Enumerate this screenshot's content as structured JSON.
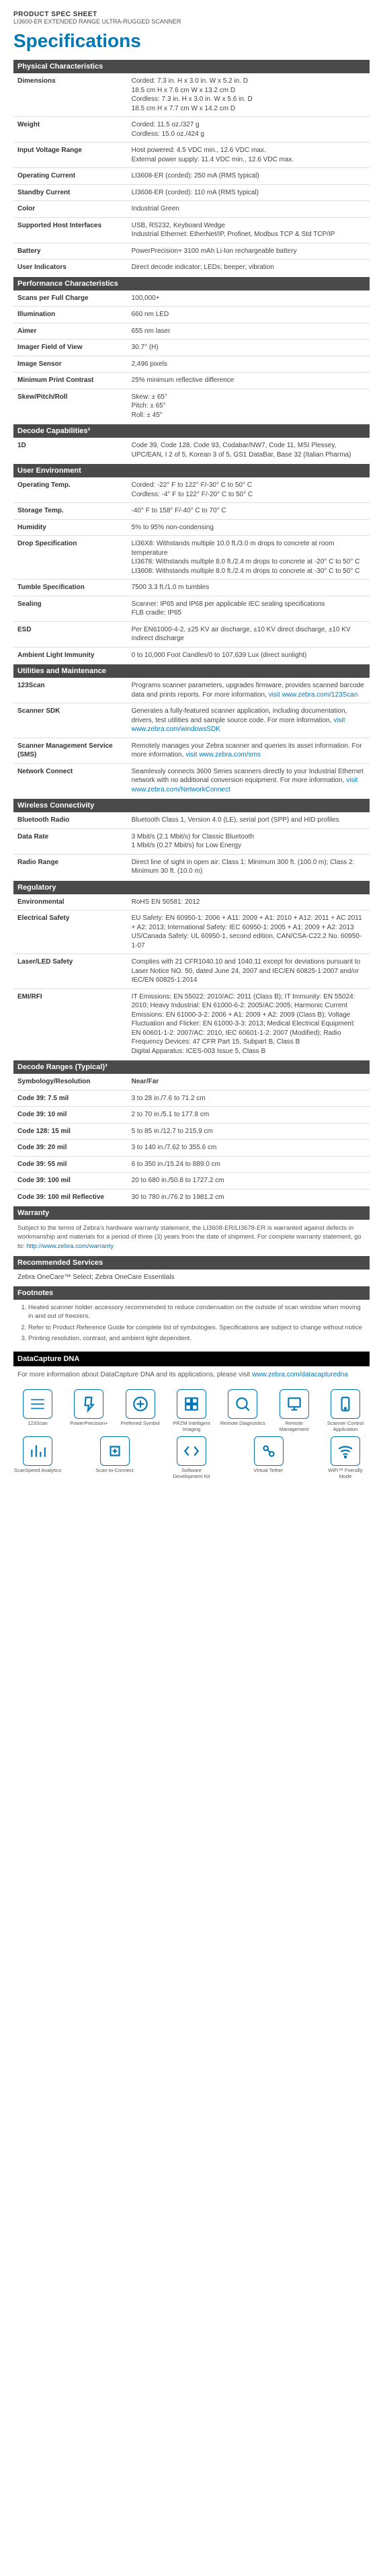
{
  "docType": "PRODUCT SPEC SHEET",
  "docSubtitle": "LI3600-ER EXTENDED RANGE ULTRA-RUGGED SCANNER",
  "title": "Specifications",
  "sections": [
    {
      "header": "Physical Characteristics",
      "rows": [
        {
          "label": "Dimensions",
          "value": "Corded: 7.3 in. H x 3.0 in. W x 5.2 in. D\n18.5 cm H x 7.6 cm W x 13.2 cm D\nCordless: 7.3 in. H x 3.0 in. W x 5.6 in. D\n18.5 cm H x 7.7 cm W x 14.2 cm D"
        },
        {
          "label": "Weight",
          "value": "Corded: 11.5 oz./327 g\nCordless: 15.0 oz./424 g"
        },
        {
          "label": "Input Voltage Range",
          "value": "Host powered: 4.5 VDC min., 12.6 VDC max.\nExternal power supply: 11.4 VDC min., 12.6 VDC max."
        },
        {
          "label": "Operating Current",
          "value": "LI3608-ER (corded): 250 mA (RMS typical)"
        },
        {
          "label": "Standby Current",
          "value": "LI3608-ER (corded): 110 mA (RMS typical)"
        },
        {
          "label": "Color",
          "value": "Industrial Green"
        },
        {
          "label": "Supported Host Interfaces",
          "value": "USB, RS232, Keyboard Wedge\nIndustrial Ethernet: EtherNet/IP, Profinet, Modbus TCP & Std TCP/IP"
        },
        {
          "label": "Battery",
          "value": "PowerPrecision+ 3100 mAh Li-Ion rechargeable battery"
        },
        {
          "label": "User Indicators",
          "value": "Direct decode indicator; LEDs; beeper; vibration"
        }
      ]
    },
    {
      "header": "Performance Characteristics",
      "rows": [
        {
          "label": "Scans per Full Charge",
          "value": "100,000+"
        },
        {
          "label": "Illumination",
          "value": "660 nm LED"
        },
        {
          "label": "Aimer",
          "value": "655 nm laser"
        },
        {
          "label": "Imager Field of View",
          "value": "30.7° (H)"
        },
        {
          "label": "Image Sensor",
          "value": "2,496 pixels"
        },
        {
          "label": "Minimum Print Contrast",
          "value": "25% minimum reflective difference"
        },
        {
          "label": "Skew/Pitch/Roll",
          "value": "Skew: ± 65°\nPitch: ± 65°\nRoll: ± 45°"
        }
      ]
    },
    {
      "header": "Decode Capabilities²",
      "rows": [
        {
          "label": "1D",
          "value": "Code 39, Code 128, Code 93, Codabar/NW7, Code 11, MSI Plessey, UPC/EAN, I 2 of 5, Korean 3 of 5, GS1 DataBar, Base 32 (Italian Pharma)"
        }
      ]
    },
    {
      "header": "User Environment",
      "rows": [
        {
          "label": "Operating Temp.",
          "value": "Corded: -22° F to 122° F/-30° C to 50° C\nCordless: -4° F to 122° F/-20° C to 50° C"
        },
        {
          "label": "Storage Temp.",
          "value": "-40° F to 158° F/-40° C to 70° C"
        },
        {
          "label": "Humidity",
          "value": "5% to 95% non-condensing"
        },
        {
          "label": "Drop Specification",
          "value": "LI36X8: Withstands multiple 10.0 ft./3.0 m drops to concrete at room temperature\nLI3678: Withstands multiple 8.0 ft./2.4 m drops to concrete at -20° C to 50° C\nLI3608: Withstands multiple 8.0 ft./2.4 m drops to concrete at -30° C to 50° C"
        },
        {
          "label": "Tumble Specification",
          "value": "7500 3.3 ft./1.0 m tumbles"
        },
        {
          "label": "Sealing",
          "value": "Scanner: IP65 and IP68 per applicable IEC sealing specifications\nFLB cradle: IP65"
        },
        {
          "label": "ESD",
          "value": "Per EN61000-4-2, ±25 KV air discharge, ±10 KV direct discharge, ±10 KV indirect discharge"
        },
        {
          "label": "Ambient Light Immunity",
          "value": "0 to 10,000 Foot Candles/0 to 107,639 Lux (direct sunlight)"
        }
      ]
    },
    {
      "header": "Utilities and Maintenance",
      "rows": [
        {
          "label": "123Scan",
          "value": "Programs scanner parameters, upgrades firmware, provides scanned barcode data and prints reports. For more information,",
          "link": "visit www.zebra.com/123Scan"
        },
        {
          "label": "Scanner SDK",
          "value": "Generates a fully-featured scanner application, including documentation, drivers, test utilities and sample source code. For more information,",
          "link": "visit www.zebra.com/windowsSDK"
        },
        {
          "label": "Scanner Management Service (SMS)",
          "value": "Remotely manages your Zebra scanner and queries its asset information. For more information,",
          "link": "visit www.zebra.com/sms"
        },
        {
          "label": "Network Connect",
          "value": "Seamlessly connects 3600 Series scanners directly to your Industrial Ethernet network with no additional conversion equipment. For more information,",
          "link": "visit www.zebra.com/NetworkConnect"
        }
      ]
    },
    {
      "header": "Wireless Connectivity",
      "rows": [
        {
          "label": "Bluetooth Radio",
          "value": "Bluetooth Class 1, Version 4.0 (LE), serial port (SPP) and HID profiles"
        },
        {
          "label": "Data Rate",
          "value": "3 Mbit/s (2.1 Mbit/s) for Classic Bluetooth\n1 Mbit/s (0.27 Mbit/s) for Low Energy"
        },
        {
          "label": "Radio Range",
          "value": "Direct line of sight in open air: Class 1: Minimum 300 ft. (100.0 m); Class 2: Minimum 30 ft. (10.0 m)"
        }
      ]
    },
    {
      "header": "Regulatory",
      "rows": [
        {
          "label": "Environmental",
          "value": "RoHS EN 50581: 2012"
        },
        {
          "label": "Electrical Safety",
          "value": "EU Safety: EN 60950-1: 2006 + A11: 2009 + A1: 2010 + A12: 2011 + AC 2011 + A2: 2013; International Safety: IEC 60950-1: 2005 + A1: 2009 + A2: 2013 US/Canada Safety: UL 60950-1, second edition, CAN/CSA-C22.2 No. 60950-1-07"
        },
        {
          "label": "Laser/LED Safety",
          "value": "Complies with 21 CFR1040.10 and 1040.11 except for deviations pursuant to Laser Notice NO. 50, dated June 24, 2007 and IEC/EN 60825-1:2007 and/or IEC/EN 60825-1:2014"
        },
        {
          "label": "EMI/RFI",
          "value": "IT Emissions: EN 55022: 2010/AC: 2011 (Class B); IT Immunity: EN 55024: 2010; Heavy Industrial: EN 61000-6-2: 2005/AC:2005; Harmonic Current Emissions: EN 61000-3-2: 2006 + A1: 2009 + A2: 2009 (Class B); Voltage Fluctuation and Flicker: EN 61000-3-3: 2013; Medical Electrical Equipment: EN 60601-1-2: 2007/AC: 2010, IEC 60601-1-2: 2007 (Modified); Radio Frequency Devices: 47 CFR Part 15, Subpart B, Class B\nDigital Apparatus: ICES-003 Issue 5, Class B"
        }
      ]
    },
    {
      "header": "Decode Ranges (Typical)³",
      "rows": [
        {
          "label": "Symbology/Resolution",
          "value": "Near/Far",
          "bold": true
        },
        {
          "label": "Code 39: 7.5 mil",
          "value": "3 to 28 in./7.6 to 71.2 cm"
        },
        {
          "label": "Code 39: 10 mil",
          "value": "2 to 70 in./5.1 to 177.8 cm"
        },
        {
          "label": "Code 128: 15 mil",
          "value": "5 to 85 in./12.7 to 215.9 cm"
        },
        {
          "label": "Code 39: 20 mil",
          "value": "3 to 140 in./7.62 to 355.6 cm"
        },
        {
          "label": "Code 39: 55 mil",
          "value": "6 to 350 in./15.24 to 889.0 cm"
        },
        {
          "label": "Code 39: 100 mil",
          "value": "20 to 680 in./50.8 to 1727.2 cm"
        },
        {
          "label": "Code 39: 100 mil Reflective",
          "value": "30 to 780 in./76.2 to 1981.2 cm"
        }
      ]
    }
  ],
  "warranty": {
    "header": "Warranty",
    "text": "Subject to the terms of Zebra's hardware warranty statement, the LI3608-ER/LI3678-ER is warranted against defects in workmanship and materials for a period of three (3) years from the date of shipment. For complete warranty statement, go to:",
    "link": "http://www.zebra.com/warranty"
  },
  "services": {
    "header": "Recommended Services",
    "text": "Zebra OneCare™ Select; Zebra OneCare Essentials"
  },
  "footnotes": {
    "header": "Footnotes",
    "items": [
      "Heated scanner holder accessory recommended to reduce condensation on the outside of scan window when moving in and out of freezers.",
      "Refer to Product Reference Guide for complete list of symbologies. Specifications are subject to change without notice",
      "Printing resolution, contrast, and ambient light dependent."
    ]
  },
  "dna": {
    "header": "DataCapture DNA",
    "text": "For more information about DataCapture DNA and its applications, please visit",
    "link": "www.zebra.com/datacapturedna"
  },
  "icons": [
    {
      "name": "scan-icon",
      "label": "123Scan"
    },
    {
      "name": "power-icon",
      "label": "PowerPrecision+"
    },
    {
      "name": "pairing-icon",
      "label": "Preferred Symbol"
    },
    {
      "name": "przm-icon",
      "label": "PRZM Intelligent Imaging"
    },
    {
      "name": "diag-icon",
      "label": "Remote Diagnostics"
    },
    {
      "name": "remote-icon",
      "label": "Remote Management"
    },
    {
      "name": "app-icon",
      "label": "Scanner Control Application"
    },
    {
      "name": "analytics-icon",
      "label": "ScanSpeed Analytics"
    },
    {
      "name": "s2c-icon",
      "label": "Scan-to-Connect"
    },
    {
      "name": "sdk-icon",
      "label": "Software Development Kit"
    },
    {
      "name": "tether-icon",
      "label": "Virtual Tether"
    },
    {
      "name": "wifi-icon",
      "label": "WiFi™ Friendly Mode"
    }
  ]
}
